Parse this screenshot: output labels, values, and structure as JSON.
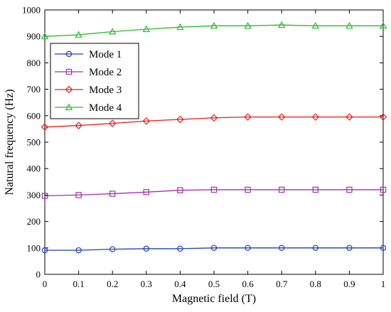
{
  "chart_data": {
    "type": "line",
    "title": "",
    "xlabel": "Magnetic field (T)",
    "ylabel": "Natural frequency (Hz)",
    "xlim": [
      0,
      1
    ],
    "ylim": [
      0,
      1000
    ],
    "x": [
      0,
      0.1,
      0.2,
      0.3,
      0.4,
      0.5,
      0.6,
      0.7,
      0.8,
      0.9,
      1
    ],
    "xticks": [
      0,
      0.1,
      0.2,
      0.3,
      0.4,
      0.5,
      0.6,
      0.7,
      0.8,
      0.9,
      1
    ],
    "xtick_labels": [
      "0",
      "0.1",
      "0.2",
      "0.3",
      "0.4",
      "0.5",
      "0.6",
      "0.7",
      "0.8",
      "0.9",
      "1"
    ],
    "yticks": [
      0,
      100,
      200,
      300,
      400,
      500,
      600,
      700,
      800,
      900,
      1000
    ],
    "ytick_labels": [
      "0",
      "100",
      "200",
      "300",
      "400",
      "500",
      "600",
      "700",
      "800",
      "900",
      "1000"
    ],
    "grid": false,
    "legend_position": "upper-left",
    "series": [
      {
        "name": "Mode 1",
        "color": "#1f3fb4",
        "marker": "circle",
        "values": [
          91,
          91,
          95,
          97,
          97,
          100,
          100,
          100,
          100,
          100,
          100
        ]
      },
      {
        "name": "Mode 2",
        "color": "#a431a8",
        "marker": "square",
        "values": [
          297,
          300,
          305,
          311,
          318,
          320,
          320,
          320,
          320,
          320,
          320
        ]
      },
      {
        "name": "Mode 3",
        "color": "#e61e1e",
        "marker": "diamond",
        "values": [
          557,
          563,
          571,
          580,
          586,
          592,
          595,
          595,
          595,
          595,
          595
        ]
      },
      {
        "name": "Mode 4",
        "color": "#2db82d",
        "marker": "triangle",
        "values": [
          900,
          906,
          918,
          927,
          935,
          940,
          940,
          943,
          940,
          940,
          940
        ]
      }
    ]
  }
}
